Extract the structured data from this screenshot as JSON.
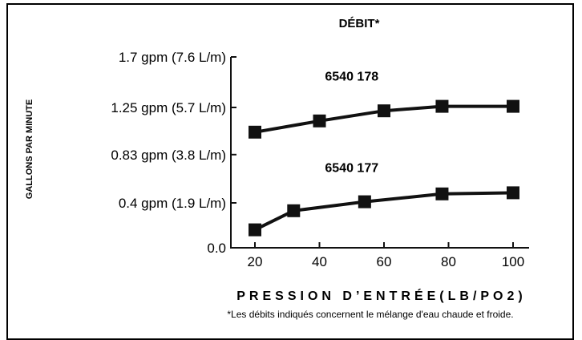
{
  "chart_data": {
    "type": "line",
    "title": "DÉBIT*",
    "xlabel": "PRESSION D’ENTRÉE(LB/PO2)",
    "ylabel": "GALLONS PAR MINUTE",
    "xlim": [
      20,
      100
    ],
    "ylim": [
      0,
      1.7
    ],
    "x_ticks": [
      20,
      40,
      60,
      80,
      100
    ],
    "y_ticks": [
      {
        "value": 0,
        "label": "0.0"
      },
      {
        "value": 0.4,
        "label": "0.4 gpm (1.9 L/m)"
      },
      {
        "value": 0.83,
        "label": "0.83 gpm (3.8 L/m)"
      },
      {
        "value": 1.25,
        "label": "1.25 gpm (5.7 L/m)"
      },
      {
        "value": 1.7,
        "label": "1.7 gpm (7.6 L/m)"
      }
    ],
    "series": [
      {
        "name": "6540 178",
        "x": [
          20,
          40,
          60,
          78,
          100
        ],
        "y": [
          1.03,
          1.13,
          1.22,
          1.26,
          1.26
        ]
      },
      {
        "name": "6540 177",
        "x": [
          20,
          32,
          54,
          78,
          100
        ],
        "y": [
          0.16,
          0.33,
          0.41,
          0.48,
          0.49
        ]
      }
    ],
    "grid": false,
    "legend": "inline-labels",
    "footnote": "*Les débits indiqués concernent le mélange d'eau chaude et froide.",
    "color": "#111111"
  }
}
